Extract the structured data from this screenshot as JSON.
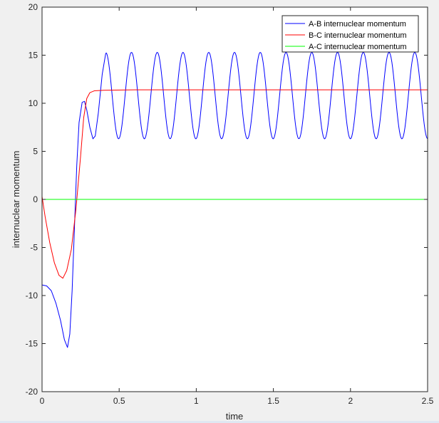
{
  "chart_data": {
    "type": "line",
    "title": "",
    "xlabel": "time",
    "ylabel": "internuclear momentum",
    "xlim": [
      0,
      2.5
    ],
    "ylim": [
      -20,
      20
    ],
    "xticks": [
      0,
      0.5,
      1,
      1.5,
      2,
      2.5
    ],
    "xtick_labels": [
      "0",
      "0.5",
      "1",
      "1.5",
      "2",
      "2.5"
    ],
    "yticks": [
      -20,
      -15,
      -10,
      -5,
      0,
      5,
      10,
      15,
      20
    ],
    "ytick_labels": [
      "-20",
      "-15",
      "-10",
      "-5",
      "0",
      "5",
      "10",
      "15",
      "20"
    ],
    "grid": false,
    "legend_position": "top-right",
    "series": [
      {
        "name": "A-B internuclear momentum",
        "color": "#0000ff",
        "points": [
          [
            0,
            -8.9
          ],
          [
            0.03,
            -9.0
          ],
          [
            0.06,
            -9.5
          ],
          [
            0.09,
            -10.8
          ],
          [
            0.12,
            -12.6
          ],
          [
            0.145,
            -14.6
          ],
          [
            0.165,
            -15.4
          ],
          [
            0.18,
            -14.0
          ],
          [
            0.195,
            -9.5
          ],
          [
            0.21,
            -3.0
          ],
          [
            0.225,
            3.5
          ],
          [
            0.24,
            8.0
          ],
          [
            0.26,
            10.1
          ],
          [
            0.275,
            10.2
          ],
          [
            0.29,
            9.3
          ],
          [
            0.31,
            7.5
          ],
          [
            0.33,
            6.3
          ],
          [
            0.345,
            6.6
          ],
          [
            0.365,
            9.0
          ],
          [
            0.39,
            13.0
          ],
          [
            0.413,
            15.2
          ]
        ],
        "oscillation": {
          "from": 0.413,
          "to": 2.5,
          "max": 15.3,
          "min": 6.3,
          "period": 0.167
        }
      },
      {
        "name": "B-C internuclear momentum",
        "color": "#ff0000",
        "points": [
          [
            0,
            0.3
          ],
          [
            0.02,
            -1.8
          ],
          [
            0.05,
            -4.5
          ],
          [
            0.08,
            -6.6
          ],
          [
            0.11,
            -7.9
          ],
          [
            0.135,
            -8.2
          ],
          [
            0.16,
            -7.4
          ],
          [
            0.19,
            -5.2
          ],
          [
            0.22,
            -1.0
          ],
          [
            0.25,
            4.5
          ],
          [
            0.27,
            8.5
          ],
          [
            0.29,
            10.5
          ],
          [
            0.31,
            11.1
          ],
          [
            0.34,
            11.3
          ],
          [
            0.4,
            11.35
          ],
          [
            0.6,
            11.4
          ],
          [
            1.0,
            11.4
          ],
          [
            1.5,
            11.4
          ],
          [
            2.0,
            11.4
          ],
          [
            2.5,
            11.4
          ]
        ]
      },
      {
        "name": "A-C internuclear momentum",
        "color": "#00ff00",
        "points": [
          [
            0,
            0
          ],
          [
            2.5,
            0
          ]
        ]
      }
    ]
  }
}
